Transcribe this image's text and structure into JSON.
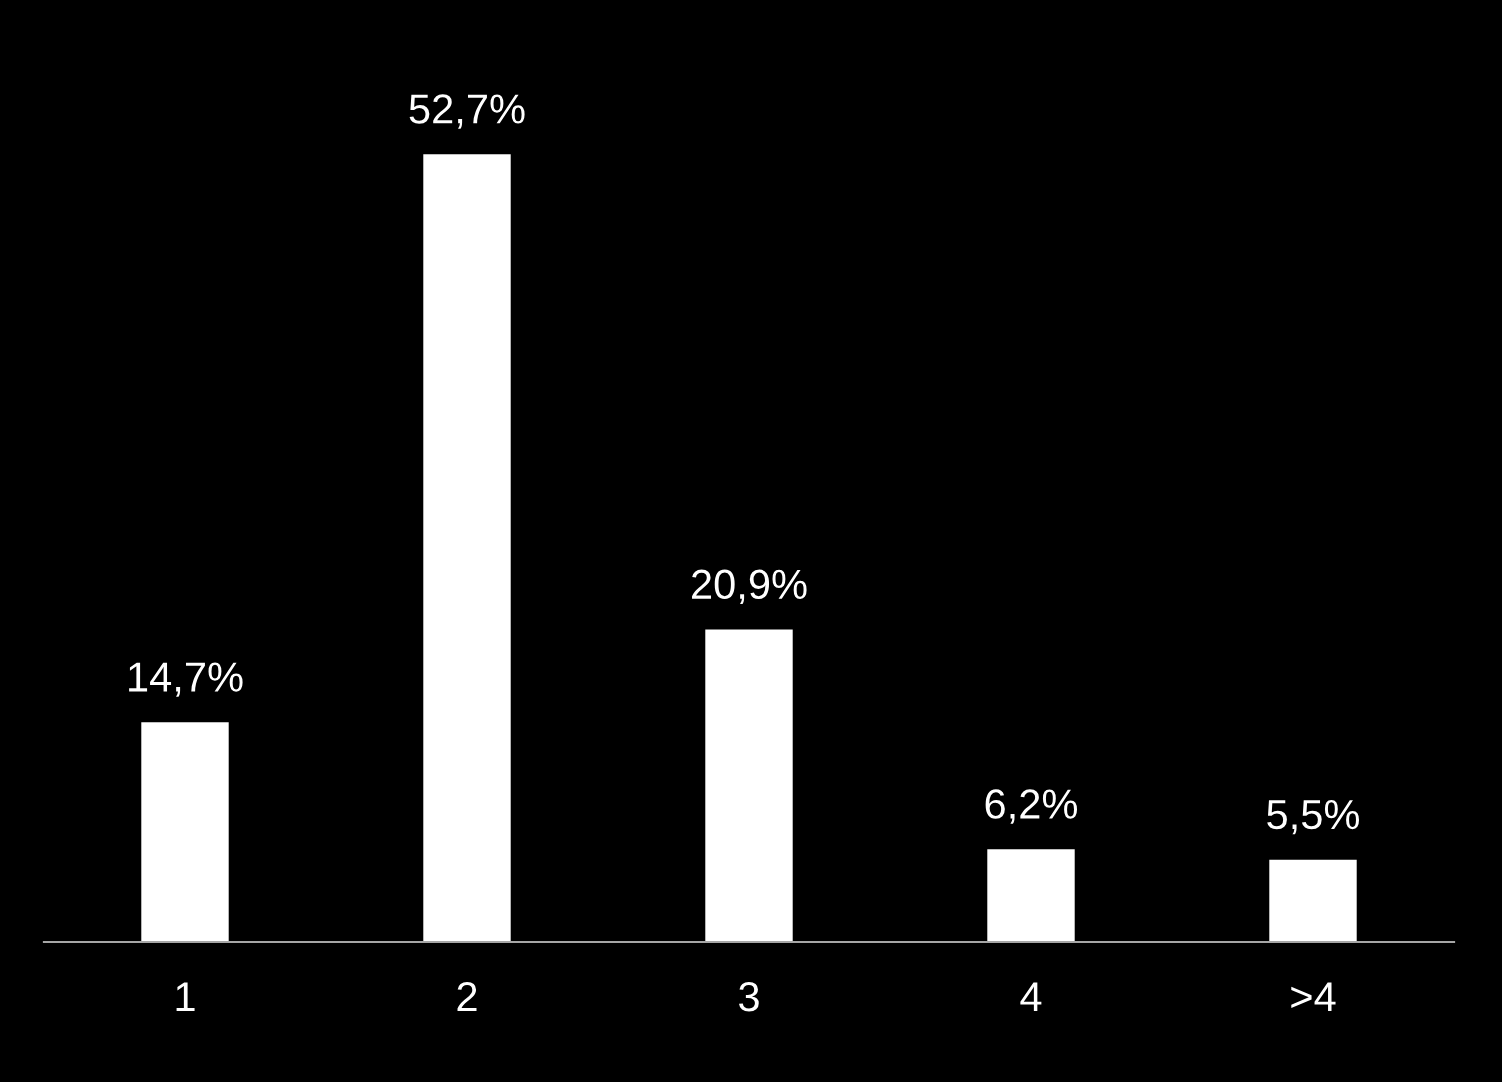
{
  "chart_data": {
    "type": "bar",
    "categories": [
      "1",
      "2",
      "3",
      "4",
      ">4"
    ],
    "values": [
      14.7,
      52.7,
      20.9,
      6.2,
      5.5
    ],
    "value_labels": [
      "14,7%",
      "52,7%",
      "20,9%",
      "6,2%",
      "5,5%"
    ],
    "color": "#ffffff",
    "tick_labels": "x",
    "grid": false,
    "legend": false
  }
}
